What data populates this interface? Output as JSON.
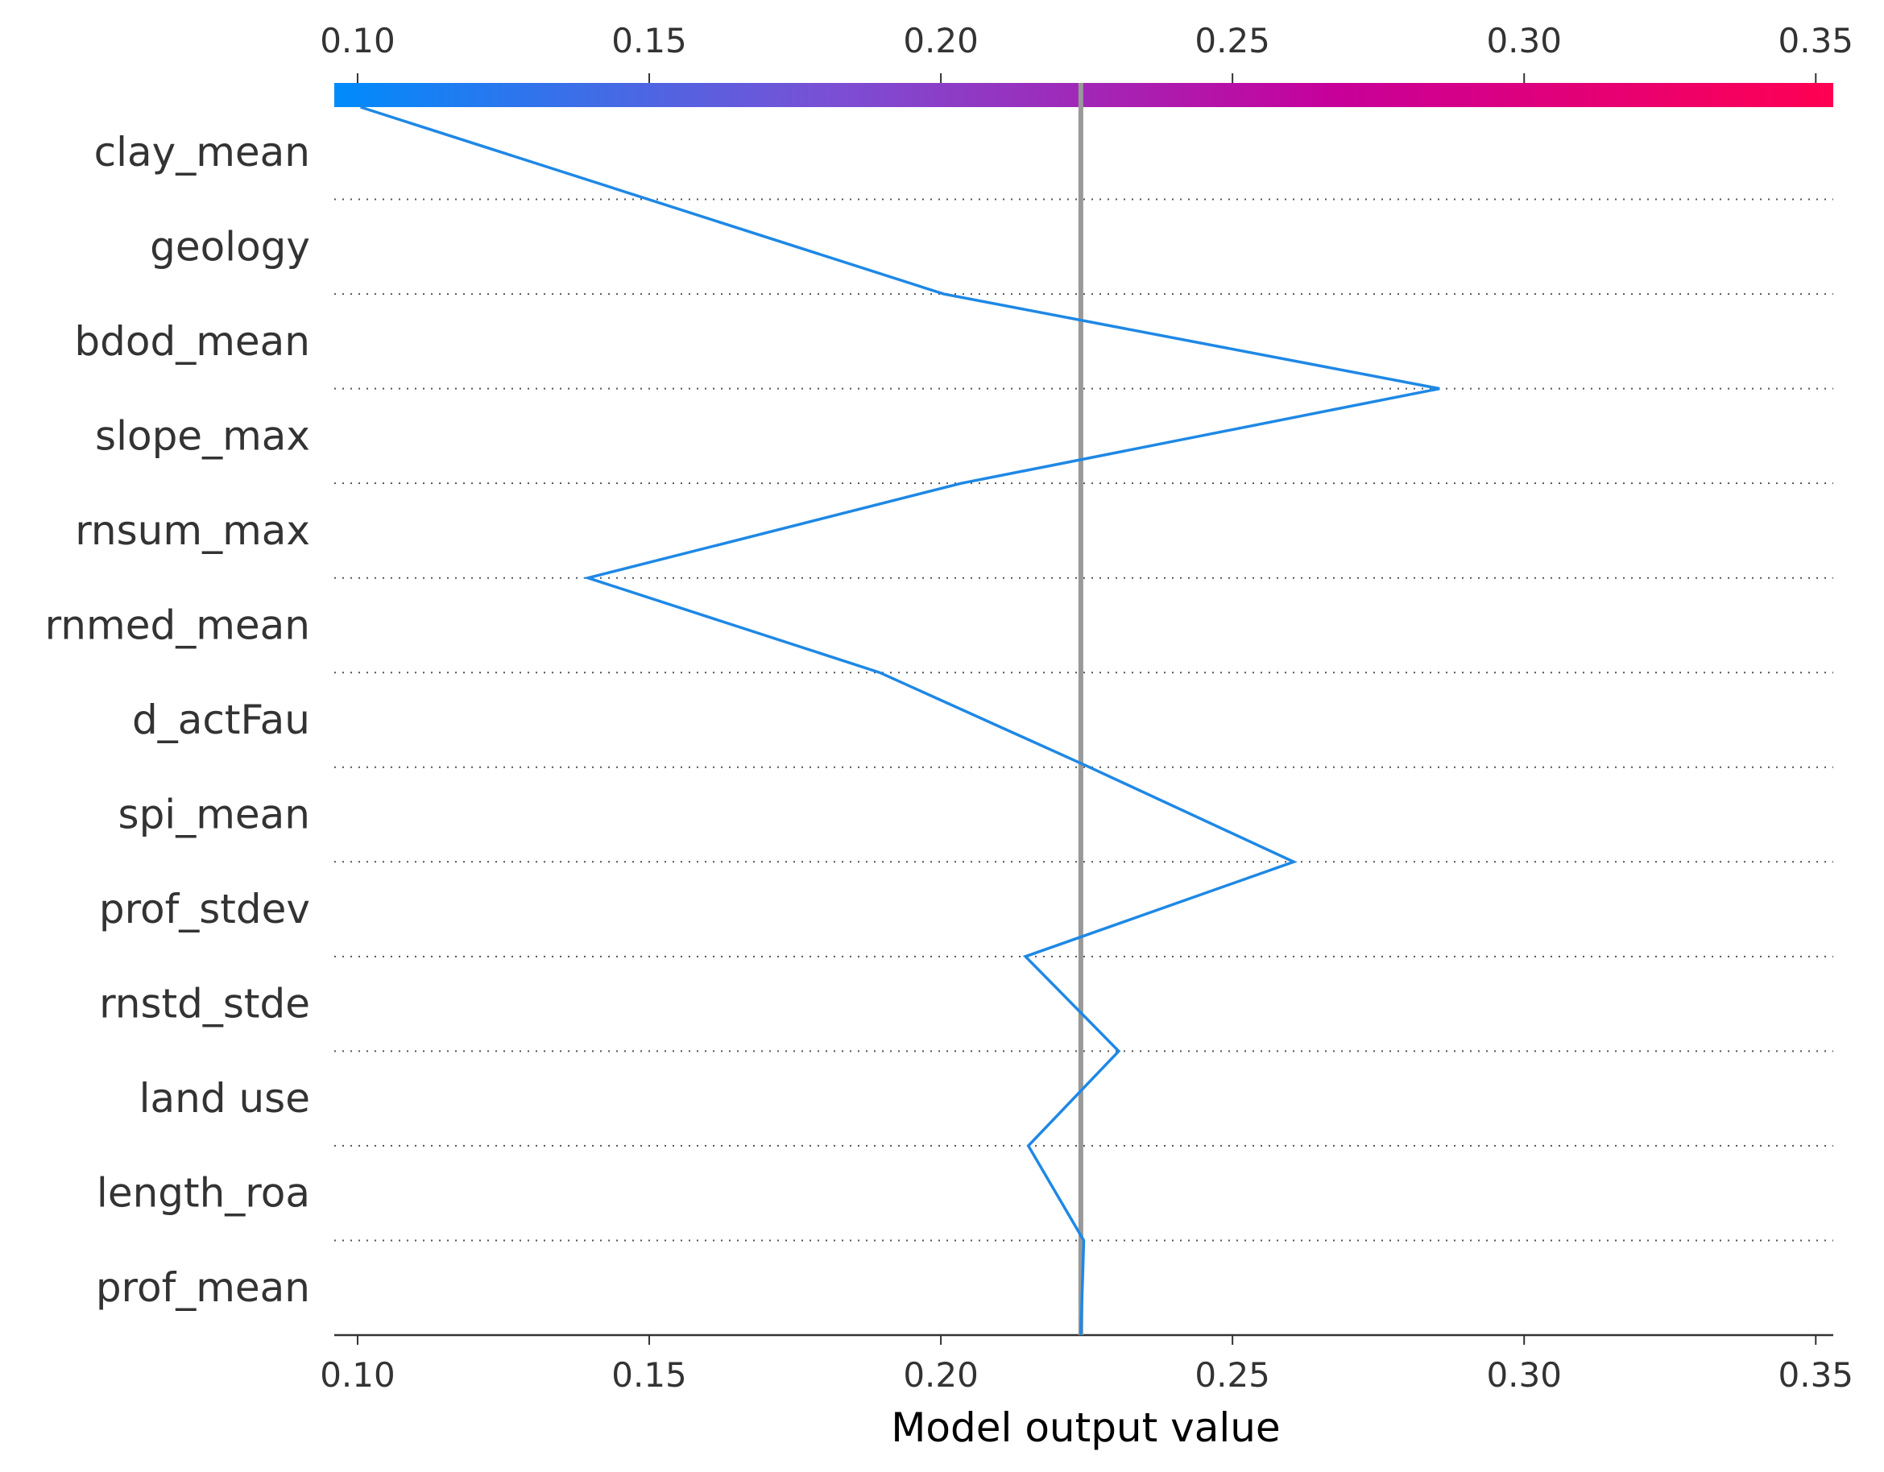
{
  "chart_data": {
    "type": "line",
    "subtype": "shap-decision-plot",
    "xlabel": "Model output value",
    "xlim": [
      0.096,
      0.353
    ],
    "xticks": [
      0.1,
      0.15,
      0.2,
      0.25,
      0.3,
      0.35
    ],
    "xtick_labels": [
      "0.10",
      "0.15",
      "0.20",
      "0.25",
      "0.30",
      "0.35"
    ],
    "base_value": 0.224,
    "features": [
      "clay_mean",
      "geology",
      "bdod_mean",
      "slope_max",
      "rnsum_max",
      "rnmed_mean",
      "d_actFau",
      "spi_mean",
      "prof_stdev",
      "rnstd_stde",
      "land use",
      "length_roa",
      "prof_mean"
    ],
    "path": [
      0.224,
      0.2245,
      0.215,
      0.2305,
      0.2145,
      0.2605,
      0.2255,
      0.1895,
      0.1395,
      0.2035,
      0.2855,
      0.2005,
      0.1005
    ],
    "colorbar": {
      "min": 0.096,
      "max": 0.353,
      "colors": [
        "#008bfb",
        "#7b4fd4",
        "#c7009a",
        "#ff0052"
      ]
    },
    "line_color": "#1e88e5",
    "base_line_color": "#999999",
    "grid": "dotted horizontal"
  }
}
